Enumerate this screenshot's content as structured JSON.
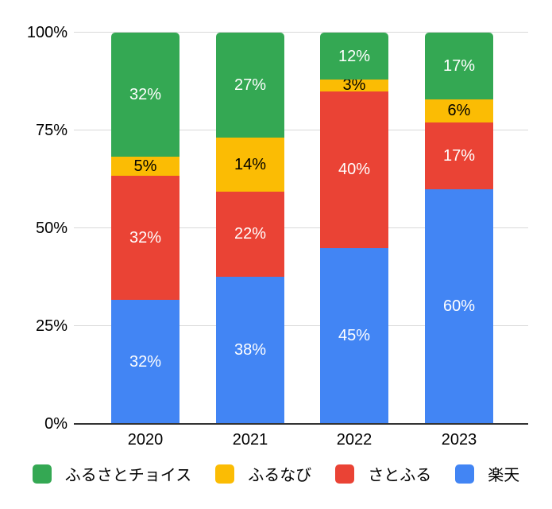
{
  "chart_data": {
    "type": "bar",
    "subtype": "stacked-100-percent-column",
    "categories": [
      "2020",
      "2021",
      "2022",
      "2023"
    ],
    "series": [
      {
        "name": "ふるさとチョイス",
        "color": "#34a853",
        "label_color": "#ffffff",
        "values": [
          32,
          27,
          12,
          17
        ]
      },
      {
        "name": "ふるなび",
        "color": "#fbbc04",
        "label_color": "#000000",
        "values": [
          5,
          14,
          3,
          6
        ]
      },
      {
        "name": "さとふる",
        "color": "#ea4335",
        "label_color": "#ffffff",
        "values": [
          32,
          22,
          40,
          17
        ]
      },
      {
        "name": "楽天",
        "color": "#4285f4",
        "label_color": "#ffffff",
        "values": [
          32,
          38,
          45,
          60
        ]
      }
    ],
    "stack_order_bottom_to_top": [
      "楽天",
      "さとふる",
      "ふるなび",
      "ふるさとチョイス"
    ],
    "value_suffix": "%",
    "y_ticks": [
      "100%",
      "75%",
      "50%",
      "25%",
      "0%"
    ],
    "y_tick_values": [
      100,
      75,
      50,
      25,
      0
    ],
    "ylim": [
      0,
      100
    ],
    "title": "",
    "xlabel": "",
    "ylabel": "",
    "grid": true,
    "legend_position": "bottom",
    "colors": {
      "background": "#ffffff",
      "gridline": "#d9d9d9",
      "axis_line": "#333333",
      "text": "#000000"
    }
  }
}
